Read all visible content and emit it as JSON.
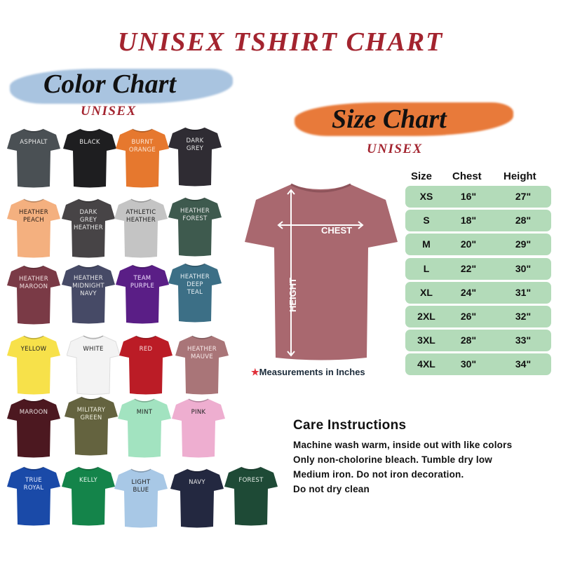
{
  "title": "UNISEX TSHIRT CHART",
  "color_chart": {
    "title": "Color Chart",
    "subtitle": "UNISEX",
    "brush_color": "#a9c4e0",
    "colors": [
      {
        "label": "ASPHALT",
        "color": "#4a5054",
        "text": "#e8e8e8"
      },
      {
        "label": "BLACK",
        "color": "#1e1e20",
        "text": "#e8e8e8"
      },
      {
        "label": "BURNT ORANGE",
        "color": "#e6782e",
        "text": "#fbe6d6"
      },
      {
        "label": "DARK GREY",
        "color": "#2f2c33",
        "text": "#e8e8e8"
      },
      {
        "label": "HEATHER PEACH",
        "color": "#f4b07f",
        "text": "#2a1e18"
      },
      {
        "label": "DARK GREY HEATHER",
        "color": "#474446",
        "text": "#e8e8e8"
      },
      {
        "label": "ATHLETIC HEATHER",
        "color": "#c4c4c4",
        "text": "#222"
      },
      {
        "label": "HEATHER FOREST",
        "color": "#3e5a4e",
        "text": "#e8e8e8"
      },
      {
        "label": "HEATHER MAROON",
        "color": "#7a3a46",
        "text": "#f0e0e0"
      },
      {
        "label": "HEATHER MIDNIGHT NAVY",
        "color": "#464a66",
        "text": "#e8e8e8"
      },
      {
        "label": "TEAM PURPLE",
        "color": "#5a1e86",
        "text": "#f0e0ff"
      },
      {
        "label": "HEATHER DEEP TEAL",
        "color": "#3c6f86",
        "text": "#e8f0f4"
      },
      {
        "label": "YELLOW",
        "color": "#f7e14a",
        "text": "#222"
      },
      {
        "label": "WHITE",
        "color": "#f3f3f3",
        "text": "#222"
      },
      {
        "label": "RED",
        "color": "#bb1c26",
        "text": "#f8dede"
      },
      {
        "label": "HEATHER MAUVE",
        "color": "#a97578",
        "text": "#f8eaea"
      },
      {
        "label": "MAROON",
        "color": "#4c1820",
        "text": "#e8e0e0"
      },
      {
        "label": "MILITARY GREEN",
        "color": "#64633f",
        "text": "#f0f0e0"
      },
      {
        "label": "MINT",
        "color": "#a2e3c0",
        "text": "#222"
      },
      {
        "label": "PINK",
        "color": "#eeaed0",
        "text": "#222"
      },
      {
        "label": "TRUE ROYAL",
        "color": "#1a4aa8",
        "text": "#e8eeff"
      },
      {
        "label": "KELLY",
        "color": "#14844a",
        "text": "#e8f8ee"
      },
      {
        "label": "LIGHT BLUE",
        "color": "#a8c8e6",
        "text": "#222"
      },
      {
        "label": "NAVY",
        "color": "#232840",
        "text": "#e8e8e8"
      },
      {
        "label": "FOREST",
        "color": "#1e4a36",
        "text": "#e8f0ea"
      }
    ]
  },
  "size_chart": {
    "title": "Size Chart",
    "subtitle": "UNISEX",
    "brush_color": "#e87a3a",
    "shirt_color": "#a9686f",
    "chest_label": "CHEST",
    "height_label": "HEIGHT",
    "note": "Measurements in Inches",
    "row_color": "#b3dbb9",
    "headers": [
      "Size",
      "Chest",
      "Height"
    ],
    "rows": [
      [
        "XS",
        "16\"",
        "27\""
      ],
      [
        "S",
        "18\"",
        "28\""
      ],
      [
        "M",
        "20\"",
        "29\""
      ],
      [
        "L",
        "22\"",
        "30\""
      ],
      [
        "XL",
        "24\"",
        "31\""
      ],
      [
        "2XL",
        "26\"",
        "32\""
      ],
      [
        "3XL",
        "28\"",
        "33\""
      ],
      [
        "4XL",
        "30\"",
        "34\""
      ]
    ]
  },
  "care": {
    "title": "Care Instructions",
    "lines": [
      "Machine wash warm, inside out with like colors",
      "Only non-cholorine bleach. Tumble dry low",
      "Medium iron. Do not iron decoration.",
      "Do not dry clean"
    ]
  },
  "accent_color": "#a3242f"
}
